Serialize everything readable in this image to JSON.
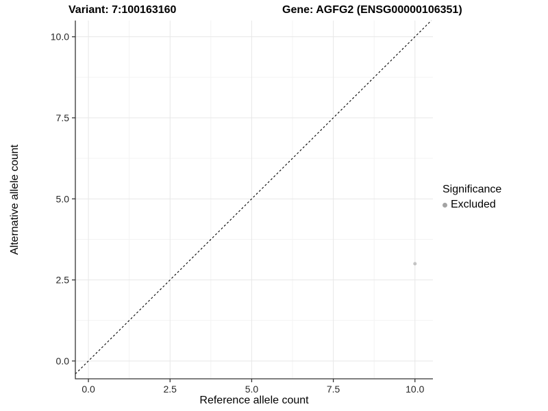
{
  "chart_data": {
    "type": "scatter",
    "titles": [
      "Variant: 7:100163160",
      "Gene: AGFG2 (ENSG00000106351)"
    ],
    "xlabel": "Reference allele count",
    "ylabel": "Alternative allele count",
    "xlim": [
      -0.4,
      10.55
    ],
    "ylim": [
      -0.55,
      10.5
    ],
    "xticks": {
      "values": [
        0,
        2.5,
        5,
        7.5,
        10
      ],
      "labels": [
        "0.0",
        "2.5",
        "5.0",
        "7.5",
        "10.0"
      ]
    },
    "yticks": {
      "values": [
        0,
        2.5,
        5,
        7.5,
        10
      ],
      "labels": [
        "0.0",
        "2.5",
        "5.0",
        "7.5",
        "10.0"
      ]
    },
    "minor_xticks": [
      1.25,
      3.75,
      6.25,
      8.75
    ],
    "minor_yticks": [
      1.25,
      3.75,
      6.25,
      8.75
    ],
    "grid": "major+minor",
    "series": [
      {
        "name": "Excluded",
        "color": "#c4c4c4",
        "point_radius": 2.5,
        "points": [
          {
            "x": 10,
            "y": 3
          }
        ]
      }
    ],
    "reference_line": {
      "type": "identity",
      "slope": 1,
      "intercept": 0,
      "style": "dashed",
      "color": "#000000"
    },
    "legend": {
      "title": "Significance",
      "position": "right",
      "items": [
        {
          "label": "Excluded",
          "color": "#a3a3a3"
        }
      ]
    }
  },
  "colors": {
    "axis_line": "#333333",
    "tick_mark": "#333333",
    "tick_label": "#262626",
    "grid_major": "#e7e7e7",
    "grid_minor": "#f3f3f3",
    "background": "#ffffff"
  }
}
